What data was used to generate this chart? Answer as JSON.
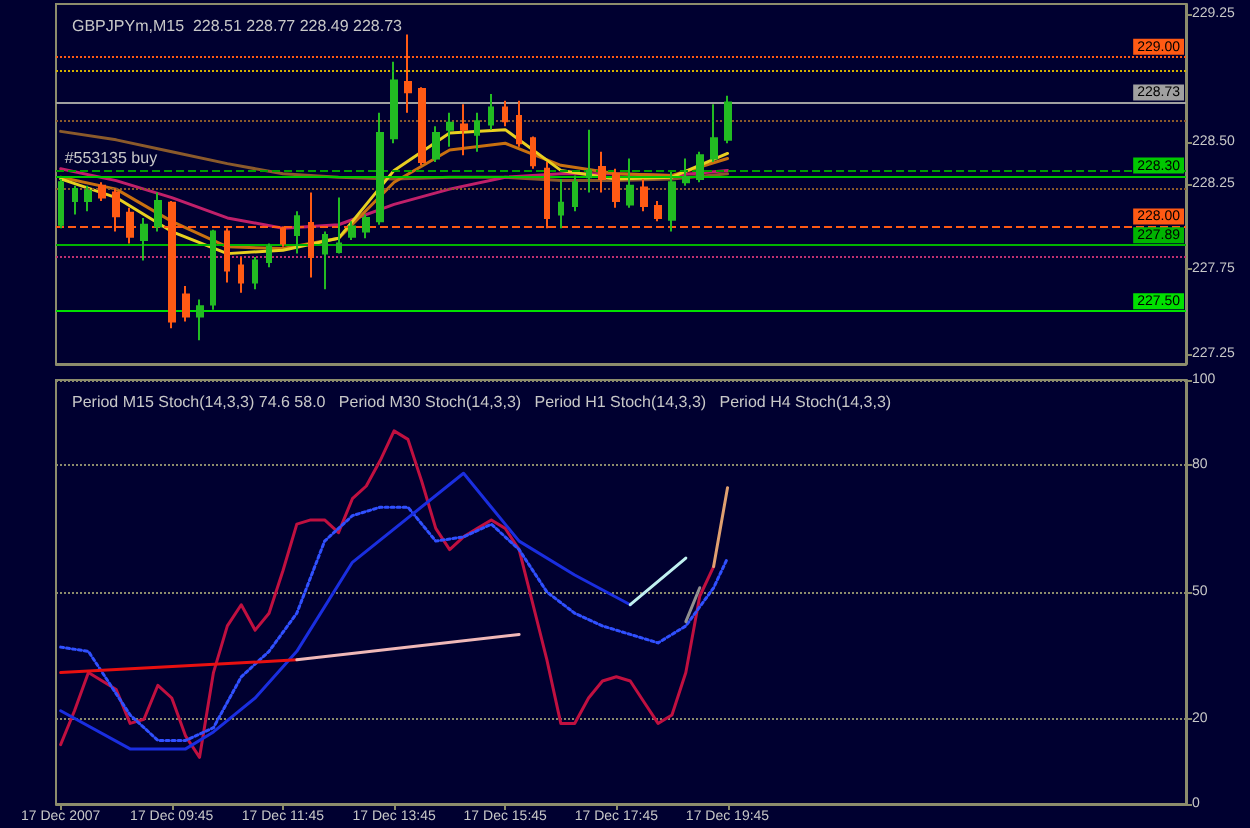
{
  "chart_data": [
    {
      "type": "candlestick",
      "title": "GBPJPYm,M15  228.51 228.77 228.49 228.73",
      "x": [
        "2007-12-17T07:45",
        "2007-12-17T08:00",
        "2007-12-17T08:15",
        "2007-12-17T08:30",
        "2007-12-17T08:45",
        "2007-12-17T09:00",
        "2007-12-17T09:15",
        "2007-12-17T09:30",
        "2007-12-17T09:45",
        "2007-12-17T10:00",
        "2007-12-17T10:15",
        "2007-12-17T10:30",
        "2007-12-17T10:45",
        "2007-12-17T11:00",
        "2007-12-17T11:15",
        "2007-12-17T11:30",
        "2007-12-17T11:45",
        "2007-12-17T12:00",
        "2007-12-17T12:15",
        "2007-12-17T12:30",
        "2007-12-17T12:45",
        "2007-12-17T13:00",
        "2007-12-17T13:15",
        "2007-12-17T13:30",
        "2007-12-17T13:45",
        "2007-12-17T14:00",
        "2007-12-17T14:15",
        "2007-12-17T14:30",
        "2007-12-17T14:45",
        "2007-12-17T15:00",
        "2007-12-17T15:15",
        "2007-12-17T15:30",
        "2007-12-17T15:45",
        "2007-12-17T16:00",
        "2007-12-17T16:15",
        "2007-12-17T16:30",
        "2007-12-17T16:45",
        "2007-12-17T17:00",
        "2007-12-17T17:15",
        "2007-12-17T17:30",
        "2007-12-17T17:45",
        "2007-12-17T18:00",
        "2007-12-17T18:15",
        "2007-12-17T18:30",
        "2007-12-17T18:45",
        "2007-12-17T19:00",
        "2007-12-17T19:15",
        "2007-12-17T19:30",
        "2007-12-17T19:45"
      ],
      "ohlc": [
        [
          228.01,
          228.28,
          227.99,
          228.26
        ],
        [
          228.15,
          228.24,
          228.07,
          228.22
        ],
        [
          228.15,
          228.24,
          228.09,
          228.21
        ],
        [
          228.24,
          228.26,
          228.15,
          228.17
        ],
        [
          228.2,
          228.22,
          227.97,
          228.06
        ],
        [
          228.08,
          228.11,
          227.9,
          227.94
        ],
        [
          227.92,
          228.05,
          227.8,
          228.01
        ],
        [
          228.0,
          228.2,
          227.97,
          228.15
        ],
        [
          228.14,
          228.15,
          227.4,
          227.44
        ],
        [
          227.6,
          227.65,
          227.44,
          227.47
        ],
        [
          227.47,
          227.57,
          227.33,
          227.53
        ],
        [
          227.54,
          227.98,
          227.51,
          227.97
        ],
        [
          227.97,
          227.99,
          227.67,
          227.74
        ],
        [
          227.77,
          227.82,
          227.61,
          227.67
        ],
        [
          227.67,
          227.82,
          227.63,
          227.8
        ],
        [
          227.79,
          227.9,
          227.76,
          227.88
        ],
        [
          227.99,
          228.0,
          227.88,
          227.9
        ],
        [
          227.95,
          228.09,
          227.84,
          228.06
        ],
        [
          228.02,
          228.2,
          227.7,
          227.82
        ],
        [
          227.84,
          227.97,
          227.63,
          227.95
        ],
        [
          227.85,
          228.17,
          227.84,
          227.9
        ],
        [
          227.94,
          228.03,
          227.92,
          228.0
        ],
        [
          227.97,
          228.07,
          227.93,
          228.05
        ],
        [
          228.03,
          228.67,
          228.01,
          228.55
        ],
        [
          228.52,
          228.97,
          228.49,
          228.86
        ],
        [
          228.85,
          229.13,
          228.67,
          228.79
        ],
        [
          228.81,
          228.82,
          228.36,
          228.38
        ],
        [
          228.4,
          228.59,
          228.38,
          228.55
        ],
        [
          228.57,
          228.67,
          228.47,
          228.61
        ],
        [
          228.6,
          228.72,
          228.42,
          228.57
        ],
        [
          228.54,
          228.67,
          228.44,
          228.62
        ],
        [
          228.6,
          228.78,
          228.57,
          228.7
        ],
        [
          228.7,
          228.74,
          228.59,
          228.62
        ],
        [
          228.65,
          228.74,
          228.47,
          228.49
        ],
        [
          228.52,
          228.53,
          228.34,
          228.36
        ],
        [
          228.34,
          228.38,
          227.99,
          228.05
        ],
        [
          228.07,
          228.28,
          227.99,
          228.14
        ],
        [
          228.12,
          228.3,
          228.09,
          228.26
        ],
        [
          228.29,
          228.57,
          228.2,
          228.33
        ],
        [
          228.35,
          228.44,
          228.2,
          228.28
        ],
        [
          228.31,
          228.34,
          228.11,
          228.15
        ],
        [
          228.13,
          228.4,
          228.11,
          228.24
        ],
        [
          228.23,
          228.28,
          228.09,
          228.12
        ],
        [
          228.12,
          228.15,
          228.03,
          228.05
        ],
        [
          228.04,
          228.32,
          227.97,
          228.26
        ],
        [
          228.26,
          228.4,
          228.24,
          228.29
        ],
        [
          228.28,
          228.44,
          228.26,
          228.42
        ],
        [
          228.4,
          228.72,
          228.38,
          228.52
        ],
        [
          228.51,
          228.77,
          228.49,
          228.73
        ]
      ],
      "colors": [
        "#22bb22",
        "#22bb22",
        "#22bb22",
        "#ff5a14",
        "#ff5a14",
        "#ff5a14",
        "#22bb22",
        "#22bb22",
        "#ff5a14",
        "#ff5a14",
        "#22bb22",
        "#22bb22",
        "#ff5a14",
        "#ff5a14",
        "#22bb22",
        "#22bb22",
        "#ff5a14",
        "#22bb22",
        "#ff5a14",
        "#22bb22",
        "#22bb22",
        "#22bb22",
        "#22bb22",
        "#22bb22",
        "#22bb22",
        "#ff5a14",
        "#ff5a14",
        "#22bb22",
        "#22bb22",
        "#ff5a14",
        "#22bb22",
        "#22bb22",
        "#ff5a14",
        "#ff5a14",
        "#ff5a14",
        "#ff5a14",
        "#22bb22",
        "#22bb22",
        "#22bb22",
        "#ff5a14",
        "#ff5a14",
        "#22bb22",
        "#ff5a14",
        "#ff5a14",
        "#22bb22",
        "#22bb22",
        "#22bb22",
        "#22bb22",
        "#22bb22"
      ],
      "series": [
        {
          "type": "line",
          "color": "#8b5a2b",
          "x": [
            "2007-12-17T07:45",
            "2007-12-17T08:45",
            "2007-12-17T09:45",
            "2007-12-17T10:45",
            "2007-12-17T11:45",
            "2007-12-17T12:45",
            "2007-12-17T13:45",
            "2007-12-17T14:45",
            "2007-12-17T15:45",
            "2007-12-17T16:45",
            "2007-12-17T17:45",
            "2007-12-17T18:45",
            "2007-12-17T19:45"
          ],
          "values": [
            228.56,
            228.51,
            228.44,
            228.37,
            228.31,
            228.29,
            228.28,
            228.29,
            228.29,
            228.27,
            228.27,
            228.28,
            228.31
          ]
        },
        {
          "type": "line",
          "color": "#c0206a",
          "x": [
            "2007-12-17T07:45",
            "2007-12-17T08:45",
            "2007-12-17T09:45",
            "2007-12-17T10:45",
            "2007-12-17T11:45",
            "2007-12-17T12:45",
            "2007-12-17T13:45",
            "2007-12-17T14:45",
            "2007-12-17T15:45",
            "2007-12-17T16:45",
            "2007-12-17T17:45",
            "2007-12-17T18:45",
            "2007-12-17T19:45"
          ],
          "values": [
            228.34,
            228.27,
            228.17,
            228.05,
            227.99,
            228.01,
            228.13,
            228.22,
            228.29,
            228.31,
            228.31,
            228.3,
            228.33
          ]
        },
        {
          "type": "line",
          "color": "#c87010",
          "x": [
            "2007-12-17T07:45",
            "2007-12-17T08:45",
            "2007-12-17T09:45",
            "2007-12-17T10:45",
            "2007-12-17T11:45",
            "2007-12-17T12:45",
            "2007-12-17T13:45",
            "2007-12-17T14:45",
            "2007-12-17T15:45",
            "2007-12-17T16:45",
            "2007-12-17T17:45",
            "2007-12-17T18:45",
            "2007-12-17T19:45"
          ],
          "values": [
            228.29,
            228.22,
            228.03,
            227.88,
            227.87,
            227.93,
            228.26,
            228.45,
            228.49,
            228.36,
            228.31,
            228.3,
            228.4
          ]
        },
        {
          "type": "line",
          "color": "#e8d020",
          "x": [
            "2007-12-17T07:45",
            "2007-12-17T08:45",
            "2007-12-17T09:45",
            "2007-12-17T10:45",
            "2007-12-17T11:45",
            "2007-12-17T12:45",
            "2007-12-17T13:45",
            "2007-12-17T14:45",
            "2007-12-17T15:45",
            "2007-12-17T16:45",
            "2007-12-17T17:45",
            "2007-12-17T18:45",
            "2007-12-17T19:45"
          ],
          "values": [
            228.28,
            228.17,
            227.97,
            227.84,
            227.86,
            227.93,
            228.33,
            228.55,
            228.57,
            228.33,
            228.28,
            228.29,
            228.43
          ]
        }
      ],
      "xlim": [
        "2007-12-17T07:40",
        "2007-12-18T04:00"
      ],
      "ylim": [
        227.19,
        229.31
      ],
      "yticks": [
        229.25,
        {
          "value": 228.5,
          "label": "228.50"
        },
        228.25,
        227.75,
        227.25
      ],
      "tick_labels": "y",
      "marker": "none",
      "ref_lines": [
        {
          "axis": "y",
          "value": 229.0,
          "label": "229.00",
          "color": "#ff5a14",
          "line_style": "dotted"
        },
        {
          "axis": "y",
          "value": 228.92,
          "color": "#d4b000",
          "line_style": "dotted"
        },
        {
          "axis": "y",
          "value": 228.73,
          "label": "228.73",
          "color": "#a0a0a0",
          "line_style": "solid"
        },
        {
          "axis": "y",
          "value": 228.62,
          "color": "#8b5a2b",
          "line_style": "dotted"
        },
        {
          "axis": "y",
          "value": 228.33,
          "color": "#00a000",
          "line_style": "dashed"
        },
        {
          "axis": "y",
          "value": 228.3,
          "label": "228.30",
          "color": "#00c800",
          "line_style": "solid"
        },
        {
          "axis": "y",
          "value": 228.22,
          "color": "#8b5a2b",
          "line_style": "dotted"
        },
        {
          "axis": "y",
          "value": 228.0,
          "label": "228.00",
          "color": "#ff5a14",
          "line_style": "dashed"
        },
        {
          "axis": "y",
          "value": 227.89,
          "label": "227.89",
          "color": "#00b400",
          "line_style": "solid"
        },
        {
          "axis": "y",
          "value": 227.82,
          "color": "#c03070",
          "line_style": "dotted"
        },
        {
          "axis": "y",
          "value": 227.5,
          "label": "227.50",
          "color": "#00e000",
          "line_style": "solid"
        }
      ],
      "annotations": [
        {
          "text": "#553135 buy",
          "x": "2007-12-17T07:45",
          "y": 228.33
        }
      ]
    },
    {
      "type": "line",
      "title": "Period M15 Stoch(14,3,3) 74.6 58.0   Period M30 Stoch(14,3,3)   Period H1 Stoch(14,3,3)   Period H4 Stoch(14,3,3)",
      "series": [
        {
          "color": "#c01040",
          "x": [
            "2007-12-17T07:45",
            "2007-12-17T08:00",
            "2007-12-17T08:15",
            "2007-12-17T08:30",
            "2007-12-17T08:45",
            "2007-12-17T09:00",
            "2007-12-17T09:15",
            "2007-12-17T09:30",
            "2007-12-17T09:45",
            "2007-12-17T10:00",
            "2007-12-17T10:15",
            "2007-12-17T10:30",
            "2007-12-17T10:45",
            "2007-12-17T11:00",
            "2007-12-17T11:15",
            "2007-12-17T11:30",
            "2007-12-17T11:45",
            "2007-12-17T12:00",
            "2007-12-17T12:15",
            "2007-12-17T12:30",
            "2007-12-17T12:45",
            "2007-12-17T13:00",
            "2007-12-17T13:15",
            "2007-12-17T13:30",
            "2007-12-17T13:45",
            "2007-12-17T14:00",
            "2007-12-17T14:15",
            "2007-12-17T14:30",
            "2007-12-17T14:45",
            "2007-12-17T15:00",
            "2007-12-17T15:15",
            "2007-12-17T15:30",
            "2007-12-17T15:45",
            "2007-12-17T16:00",
            "2007-12-17T16:15",
            "2007-12-17T16:30",
            "2007-12-17T16:45",
            "2007-12-17T17:00",
            "2007-12-17T17:15",
            "2007-12-17T17:30",
            "2007-12-17T17:45",
            "2007-12-17T18:00",
            "2007-12-17T18:15",
            "2007-12-17T18:30",
            "2007-12-17T18:45",
            "2007-12-17T19:00",
            "2007-12-17T19:15",
            "2007-12-17T19:30"
          ],
          "values": [
            14,
            22,
            31,
            29,
            27,
            19,
            20,
            28,
            25,
            16,
            11,
            31,
            42,
            47,
            41,
            45,
            55,
            66,
            67,
            67,
            64,
            72,
            75,
            81,
            88,
            86,
            76,
            65,
            60,
            63,
            65,
            67,
            65,
            60,
            47,
            34,
            19,
            19,
            25,
            29,
            30,
            29,
            24,
            19,
            21,
            31,
            49,
            56
          ]
        },
        {
          "color": "#e0a070",
          "x": [
            "2007-12-17T19:30",
            "2007-12-17T19:45"
          ],
          "values": [
            56,
            74.6
          ]
        },
        {
          "color": "#3050ff",
          "line_style": "dotted",
          "x": [
            "2007-12-17T07:45",
            "2007-12-17T08:15",
            "2007-12-17T09:00",
            "2007-12-17T09:30",
            "2007-12-17T10:00",
            "2007-12-17T10:30",
            "2007-12-17T11:00",
            "2007-12-17T11:30",
            "2007-12-17T12:00",
            "2007-12-17T12:30",
            "2007-12-17T13:00",
            "2007-12-17T13:30",
            "2007-12-17T14:00",
            "2007-12-17T14:30",
            "2007-12-17T15:00",
            "2007-12-17T15:30",
            "2007-12-17T16:00",
            "2007-12-17T16:30",
            "2007-12-17T17:00",
            "2007-12-17T17:30",
            "2007-12-17T18:00",
            "2007-12-17T18:30",
            "2007-12-17T19:00",
            "2007-12-17T19:30",
            "2007-12-17T19:45"
          ],
          "values": [
            37,
            36,
            21,
            15,
            15,
            18,
            30,
            36,
            45,
            62,
            68,
            70,
            70,
            62,
            63,
            66,
            60,
            50,
            45,
            42,
            40,
            38,
            42,
            51,
            58
          ]
        },
        {
          "color": "#1a2ee0",
          "x": [
            "2007-12-17T07:45",
            "2007-12-17T09:00",
            "2007-12-17T10:00",
            "2007-12-17T10:30",
            "2007-12-17T11:15",
            "2007-12-17T12:00",
            "2007-12-17T13:00",
            "2007-12-17T15:00",
            "2007-12-17T15:30",
            "2007-12-17T16:00",
            "2007-12-17T17:00",
            "2007-12-17T18:00"
          ],
          "values": [
            22,
            13,
            13,
            17,
            25,
            36,
            57,
            78,
            70,
            62,
            54,
            47
          ]
        },
        {
          "color": "#e81010",
          "x": [
            "2007-12-17T07:45",
            "2007-12-17T12:00"
          ],
          "values": [
            31,
            34
          ]
        },
        {
          "color": "#f0b8b8",
          "x": [
            "2007-12-17T12:00",
            "2007-12-17T16:00"
          ],
          "values": [
            34,
            40
          ]
        },
        {
          "color": "#c0f0f0",
          "x": [
            "2007-12-17T18:00",
            "2007-12-17T19:00"
          ],
          "values": [
            47,
            58
          ]
        },
        {
          "color": "#909090",
          "x": [
            "2007-12-17T19:00",
            "2007-12-17T19:15"
          ],
          "values": [
            43,
            51
          ]
        }
      ],
      "xlim": [
        "2007-12-17T07:40",
        "2007-12-18T04:00"
      ],
      "xticks": [
        {
          "value": "2007-12-17T07:45",
          "label": "17 Dec 2007"
        },
        {
          "value": "2007-12-17T09:45",
          "label": "17 Dec 09:45"
        },
        {
          "value": "2007-12-17T11:45",
          "label": "17 Dec 11:45"
        },
        {
          "value": "2007-12-17T13:45",
          "label": "17 Dec 13:45"
        },
        {
          "value": "2007-12-17T15:45",
          "label": "17 Dec 15:45"
        },
        {
          "value": "2007-12-17T17:45",
          "label": "17 Dec 17:45"
        },
        {
          "value": "2007-12-17T19:45",
          "label": "17 Dec 19:45"
        }
      ],
      "ylim": [
        0,
        100
      ],
      "yticks": [
        0,
        20,
        50,
        80,
        100
      ],
      "grid": "y",
      "marker": "none"
    }
  ]
}
